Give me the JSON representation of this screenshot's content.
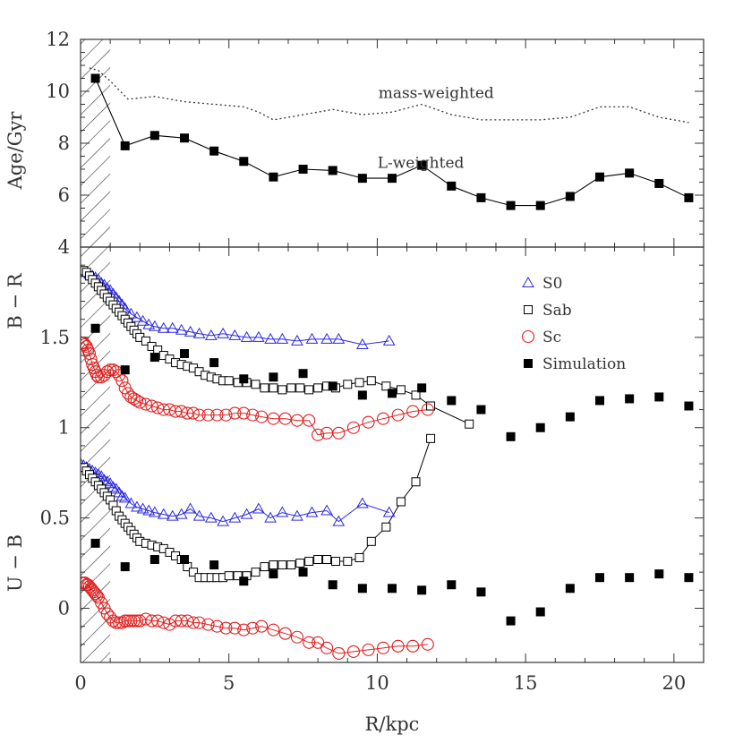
{
  "chart_data": [
    {
      "type": "line",
      "ylabel": "Age/Gyr",
      "xlim": [
        0,
        21
      ],
      "ylim": [
        4,
        12
      ],
      "yticks": [
        4,
        6,
        8,
        10,
        12
      ],
      "series": [
        {
          "name": "mass-weighted",
          "style": "dotted",
          "color": "#333333",
          "x": [
            0.3,
            0.6,
            1.0,
            1.6,
            2.5,
            3.5,
            4.5,
            5.5,
            6.0,
            6.5,
            7.5,
            8.5,
            9.5,
            10.5,
            11.5,
            12.5,
            13.5,
            14.5,
            15.5,
            16.5,
            17.5,
            18.5,
            19.5,
            20.5
          ],
          "y": [
            10.9,
            10.8,
            10.4,
            9.7,
            9.8,
            9.6,
            9.5,
            9.4,
            9.2,
            8.9,
            9.1,
            9.3,
            9.1,
            9.2,
            9.5,
            9.1,
            8.9,
            8.9,
            8.9,
            9.0,
            9.4,
            9.4,
            9.0,
            8.8
          ]
        },
        {
          "name": "L-weighted",
          "style": "solid-filled-squares",
          "color": "#000000",
          "x": [
            0.5,
            1.5,
            2.5,
            3.5,
            4.5,
            5.5,
            6.5,
            7.5,
            8.5,
            9.5,
            10.5,
            11.5,
            12.5,
            13.5,
            14.5,
            15.5,
            16.5,
            17.5,
            18.5,
            19.5,
            20.5
          ],
          "y": [
            10.5,
            7.9,
            8.3,
            8.2,
            7.7,
            7.3,
            6.7,
            7.0,
            6.95,
            6.65,
            6.65,
            7.15,
            6.35,
            5.9,
            5.6,
            5.6,
            5.95,
            6.7,
            6.85,
            6.45,
            5.9
          ]
        }
      ],
      "annotations": [
        "mass-weighted",
        "L-weighted"
      ]
    },
    {
      "type": "scatter",
      "xlabel": "R/kpc",
      "ylabel_top": "B − R",
      "ylabel_bottom": "U − B",
      "xlim": [
        0,
        21
      ],
      "ylim": [
        -0.3,
        2.0
      ],
      "xticks": [
        0,
        5,
        10,
        15,
        20
      ],
      "yticks": [
        0,
        0.5,
        1,
        1.5
      ],
      "ytick_labels": [
        "0",
        "0.5",
        "1",
        "1.5"
      ],
      "legend_position": "top-right",
      "legend": [
        "S0",
        "Sab",
        "Sc",
        "Simulation"
      ],
      "shaded_region_x": [
        0,
        1
      ],
      "series": [
        {
          "name": "S0",
          "color": "#2a2ae0",
          "marker": "triangle",
          "band": "B-R",
          "x": [
            0.0,
            0.1,
            0.2,
            0.3,
            0.4,
            0.5,
            0.6,
            0.7,
            0.8,
            0.9,
            1.0,
            1.1,
            1.2,
            1.3,
            1.4,
            1.5,
            1.7,
            1.9,
            2.1,
            2.3,
            2.5,
            2.8,
            3.1,
            3.4,
            3.7,
            4.0,
            4.4,
            4.8,
            5.2,
            5.6,
            6.0,
            6.4,
            6.8,
            7.3,
            7.8,
            8.3,
            8.7,
            9.5,
            10.4
          ],
          "y": [
            1.87,
            1.86,
            1.86,
            1.85,
            1.84,
            1.83,
            1.82,
            1.8,
            1.79,
            1.77,
            1.76,
            1.74,
            1.72,
            1.7,
            1.68,
            1.66,
            1.63,
            1.61,
            1.59,
            1.57,
            1.56,
            1.55,
            1.55,
            1.54,
            1.53,
            1.52,
            1.51,
            1.52,
            1.51,
            1.5,
            1.5,
            1.49,
            1.49,
            1.48,
            1.49,
            1.49,
            1.49,
            1.46,
            1.48
          ]
        },
        {
          "name": "S0",
          "color": "#2a2ae0",
          "marker": "triangle",
          "band": "U-B",
          "x": [
            0.0,
            0.1,
            0.2,
            0.3,
            0.4,
            0.5,
            0.6,
            0.7,
            0.8,
            0.9,
            1.0,
            1.1,
            1.2,
            1.3,
            1.4,
            1.5,
            1.7,
            1.9,
            2.1,
            2.3,
            2.5,
            2.8,
            3.1,
            3.4,
            3.7,
            4.0,
            4.4,
            4.8,
            5.2,
            5.6,
            6.0,
            6.4,
            6.8,
            7.3,
            7.8,
            8.3,
            8.7,
            9.5,
            10.4
          ],
          "y": [
            0.8,
            0.79,
            0.78,
            0.77,
            0.76,
            0.75,
            0.74,
            0.73,
            0.71,
            0.7,
            0.69,
            0.67,
            0.66,
            0.64,
            0.62,
            0.61,
            0.58,
            0.56,
            0.55,
            0.54,
            0.53,
            0.52,
            0.51,
            0.52,
            0.55,
            0.51,
            0.5,
            0.48,
            0.5,
            0.52,
            0.55,
            0.5,
            0.53,
            0.51,
            0.53,
            0.54,
            0.48,
            0.58,
            0.53
          ]
        },
        {
          "name": "Sab",
          "color": "#000000",
          "marker": "square",
          "band": "B-R",
          "x": [
            0.1,
            0.2,
            0.3,
            0.4,
            0.5,
            0.6,
            0.7,
            0.8,
            0.9,
            1.0,
            1.1,
            1.2,
            1.3,
            1.4,
            1.5,
            1.6,
            1.7,
            1.8,
            1.9,
            2.0,
            2.2,
            2.4,
            2.6,
            2.8,
            3.0,
            3.2,
            3.4,
            3.6,
            3.8,
            4.0,
            4.2,
            4.4,
            4.6,
            4.8,
            5.0,
            5.3,
            5.6,
            5.9,
            6.2,
            6.5,
            6.8,
            7.1,
            7.4,
            7.7,
            8.0,
            8.3,
            8.6,
            9.0,
            9.4,
            9.8,
            10.3,
            10.8,
            11.3,
            11.8,
            13.1
          ],
          "y": [
            1.87,
            1.86,
            1.84,
            1.82,
            1.8,
            1.78,
            1.76,
            1.74,
            1.72,
            1.7,
            1.68,
            1.66,
            1.64,
            1.62,
            1.6,
            1.58,
            1.56,
            1.54,
            1.52,
            1.5,
            1.48,
            1.45,
            1.43,
            1.4,
            1.38,
            1.36,
            1.35,
            1.34,
            1.33,
            1.31,
            1.29,
            1.28,
            1.27,
            1.26,
            1.26,
            1.25,
            1.25,
            1.24,
            1.22,
            1.22,
            1.21,
            1.22,
            1.22,
            1.21,
            1.22,
            1.23,
            1.22,
            1.24,
            1.25,
            1.26,
            1.23,
            1.21,
            1.18,
            1.12,
            1.02
          ]
        },
        {
          "name": "Sab",
          "color": "#000000",
          "marker": "square",
          "band": "U-B",
          "x": [
            0.1,
            0.2,
            0.3,
            0.4,
            0.5,
            0.6,
            0.7,
            0.8,
            0.9,
            1.0,
            1.1,
            1.2,
            1.3,
            1.4,
            1.5,
            1.6,
            1.7,
            1.8,
            1.9,
            2.0,
            2.2,
            2.4,
            2.6,
            2.8,
            3.0,
            3.2,
            3.4,
            3.6,
            3.8,
            4.0,
            4.2,
            4.4,
            4.6,
            4.8,
            5.0,
            5.3,
            5.6,
            5.9,
            6.2,
            6.5,
            6.8,
            7.1,
            7.4,
            7.7,
            8.0,
            8.3,
            8.6,
            9.0,
            9.4,
            9.8,
            10.3,
            10.8,
            11.3,
            11.8
          ],
          "y": [
            0.78,
            0.76,
            0.74,
            0.72,
            0.7,
            0.68,
            0.66,
            0.64,
            0.62,
            0.6,
            0.57,
            0.54,
            0.51,
            0.49,
            0.47,
            0.45,
            0.43,
            0.41,
            0.39,
            0.37,
            0.36,
            0.35,
            0.34,
            0.33,
            0.31,
            0.29,
            0.27,
            0.23,
            0.2,
            0.17,
            0.17,
            0.17,
            0.17,
            0.17,
            0.18,
            0.18,
            0.18,
            0.2,
            0.23,
            0.24,
            0.24,
            0.24,
            0.25,
            0.26,
            0.27,
            0.27,
            0.26,
            0.26,
            0.28,
            0.37,
            0.45,
            0.59,
            0.7,
            0.94
          ]
        },
        {
          "name": "Sc",
          "color": "#e02020",
          "marker": "circle",
          "band": "B-R",
          "x": [
            0.05,
            0.1,
            0.15,
            0.2,
            0.25,
            0.3,
            0.35,
            0.4,
            0.45,
            0.5,
            0.55,
            0.6,
            0.7,
            0.8,
            0.9,
            1.0,
            1.1,
            1.2,
            1.3,
            1.4,
            1.5,
            1.6,
            1.7,
            1.8,
            1.9,
            2.0,
            2.2,
            2.4,
            2.6,
            2.8,
            3.0,
            3.2,
            3.4,
            3.6,
            3.8,
            4.0,
            4.3,
            4.6,
            4.9,
            5.2,
            5.5,
            5.8,
            6.1,
            6.5,
            6.9,
            7.3,
            7.7,
            8.0,
            8.3,
            8.7,
            9.2,
            9.7,
            10.2,
            10.7,
            11.2,
            11.7
          ],
          "y": [
            1.47,
            1.47,
            1.46,
            1.45,
            1.43,
            1.41,
            1.38,
            1.35,
            1.33,
            1.31,
            1.29,
            1.28,
            1.28,
            1.29,
            1.31,
            1.32,
            1.32,
            1.31,
            1.29,
            1.26,
            1.22,
            1.19,
            1.17,
            1.16,
            1.15,
            1.14,
            1.13,
            1.12,
            1.11,
            1.1,
            1.1,
            1.09,
            1.09,
            1.08,
            1.08,
            1.07,
            1.07,
            1.07,
            1.07,
            1.08,
            1.08,
            1.07,
            1.06,
            1.05,
            1.05,
            1.04,
            1.04,
            0.96,
            0.97,
            0.97,
            1.0,
            1.03,
            1.05,
            1.07,
            1.09,
            1.1
          ]
        },
        {
          "name": "Sc",
          "color": "#e02020",
          "marker": "circle",
          "band": "U-B",
          "x": [
            0.05,
            0.1,
            0.15,
            0.2,
            0.25,
            0.3,
            0.35,
            0.4,
            0.45,
            0.5,
            0.55,
            0.6,
            0.7,
            0.8,
            0.9,
            1.0,
            1.1,
            1.2,
            1.3,
            1.4,
            1.5,
            1.6,
            1.7,
            1.8,
            1.9,
            2.0,
            2.2,
            2.4,
            2.6,
            2.8,
            3.0,
            3.2,
            3.4,
            3.6,
            3.8,
            4.0,
            4.3,
            4.6,
            4.9,
            5.2,
            5.5,
            5.8,
            6.1,
            6.5,
            6.9,
            7.3,
            7.7,
            8.0,
            8.3,
            8.7,
            9.2,
            9.7,
            10.2,
            10.7,
            11.2,
            11.7
          ],
          "y": [
            0.14,
            0.14,
            0.14,
            0.13,
            0.13,
            0.12,
            0.11,
            0.1,
            0.09,
            0.08,
            0.07,
            0.06,
            0.03,
            0.0,
            -0.03,
            -0.05,
            -0.07,
            -0.08,
            -0.08,
            -0.08,
            -0.07,
            -0.07,
            -0.07,
            -0.07,
            -0.07,
            -0.07,
            -0.06,
            -0.07,
            -0.07,
            -0.08,
            -0.09,
            -0.07,
            -0.07,
            -0.07,
            -0.08,
            -0.08,
            -0.09,
            -0.1,
            -0.11,
            -0.11,
            -0.12,
            -0.11,
            -0.1,
            -0.12,
            -0.14,
            -0.16,
            -0.19,
            -0.19,
            -0.22,
            -0.25,
            -0.24,
            -0.23,
            -0.22,
            -0.21,
            -0.21,
            -0.2
          ]
        },
        {
          "name": "Simulation",
          "color": "#000000",
          "marker": "filled-square",
          "band": "B-R",
          "x": [
            0.5,
            1.5,
            2.5,
            3.5,
            4.5,
            5.5,
            6.5,
            7.5,
            8.5,
            9.5,
            10.5,
            11.5,
            12.5,
            13.5,
            14.5,
            15.5,
            16.5,
            17.5,
            18.5,
            19.5,
            20.5
          ],
          "y": [
            1.55,
            1.32,
            1.39,
            1.41,
            1.36,
            1.27,
            1.28,
            1.3,
            1.23,
            1.18,
            1.19,
            1.22,
            1.15,
            1.1,
            0.95,
            1.0,
            1.06,
            1.15,
            1.16,
            1.17,
            1.12
          ]
        },
        {
          "name": "Simulation",
          "color": "#000000",
          "marker": "filled-square",
          "band": "U-B",
          "x": [
            0.5,
            1.5,
            2.5,
            3.5,
            4.5,
            5.5,
            6.5,
            7.5,
            8.5,
            9.5,
            10.5,
            11.5,
            12.5,
            13.5,
            14.5,
            15.5,
            16.5,
            17.5,
            18.5,
            19.5,
            20.5
          ],
          "y": [
            0.36,
            0.23,
            0.27,
            0.27,
            0.24,
            0.15,
            0.19,
            0.2,
            0.13,
            0.11,
            0.11,
            0.1,
            0.13,
            0.09,
            -0.07,
            -0.02,
            0.11,
            0.17,
            0.17,
            0.19,
            0.17
          ]
        }
      ]
    }
  ]
}
